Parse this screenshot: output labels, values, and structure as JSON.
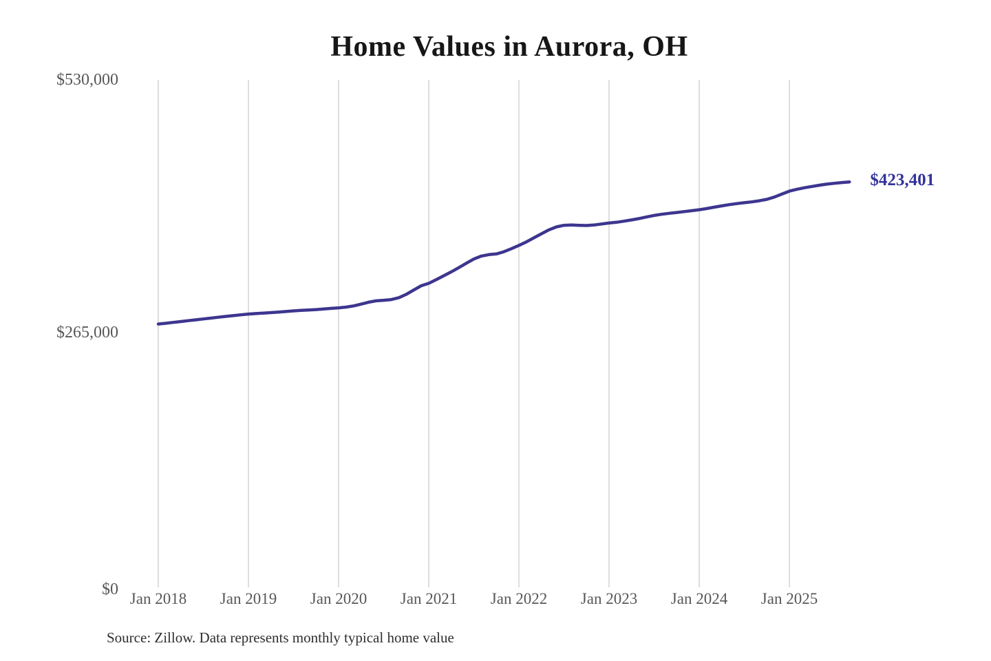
{
  "title": "Home Values in Aurora, OH",
  "end_label": "$423,401",
  "source_note": "Source: Zillow. Data represents monthly typical home value",
  "colors": {
    "line": "#3d368f",
    "end_label": "#33339b",
    "grid": "#cccccc",
    "tick_label": "#575757",
    "title": "#171717"
  },
  "chart_data": {
    "type": "line",
    "title": "Home Values in Aurora, OH",
    "xlabel": "",
    "ylabel": "",
    "x_start": "2018-01",
    "x_cadence": "monthly",
    "x_tick_labels": [
      "Jan 2018",
      "Jan 2019",
      "Jan 2020",
      "Jan 2021",
      "Jan 2022",
      "Jan 2023",
      "Jan 2024",
      "Jan 2025"
    ],
    "y_ticks": [
      0,
      265000,
      530000
    ],
    "y_tick_labels": [
      "$0",
      "$265,000",
      "$530,000"
    ],
    "ylim": [
      0,
      530000
    ],
    "grid": "vertical-only",
    "legend": "none",
    "end_annotation": 423401,
    "series": [
      {
        "name": "Monthly typical home value",
        "values": [
          275000,
          275800,
          276700,
          277600,
          278500,
          279400,
          280300,
          281200,
          282100,
          283000,
          283800,
          284600,
          285400,
          285900,
          286400,
          286900,
          287500,
          288100,
          288700,
          289200,
          289600,
          290100,
          290700,
          291300,
          291900,
          292700,
          293900,
          295800,
          297800,
          299200,
          299800,
          300500,
          302500,
          306000,
          310500,
          315000,
          317500,
          321400,
          325400,
          329500,
          333900,
          338500,
          342900,
          346000,
          347500,
          348200,
          350500,
          353700,
          357100,
          360800,
          365000,
          369300,
          373400,
          376500,
          378100,
          378400,
          378100,
          377900,
          378400,
          379500,
          380500,
          381300,
          382400,
          383700,
          385200,
          386800,
          388400,
          389600,
          390600,
          391500,
          392400,
          393400,
          394400,
          395600,
          397000,
          398400,
          399700,
          400800,
          401700,
          402600,
          403700,
          405200,
          407600,
          410700,
          413800,
          415700,
          417300,
          418700,
          420000,
          421100,
          422000,
          422800,
          423401
        ]
      }
    ]
  }
}
